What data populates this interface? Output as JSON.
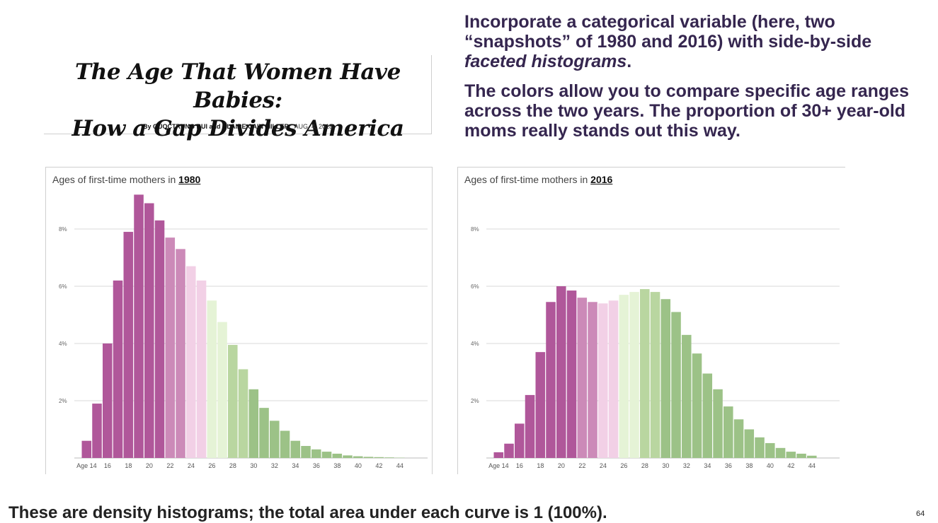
{
  "headline": {
    "title_line1": "The Age That Women Have Babies:",
    "title_line2": "How a Gap Divides America",
    "byline_prefix": "By",
    "authors": "QUOCTRUNG BUI and CLAIRE CAIN MILLER",
    "date": "AUG. 4, 2018"
  },
  "commentary": {
    "p1_a": "Incorporate a categorical variable (here, two “snapshots” of 1980 and 2016) with side-by-side ",
    "p1_em": "faceted histograms",
    "p1_b": ".",
    "p2": "The colors allow you to compare specific age ranges across the two years.  The proportion of 30+ year-old moms really stands out this way."
  },
  "footer": {
    "note": "These are density histograms; the total area under each curve is 1 (100%).",
    "page_number": "64"
  },
  "colors": {
    "purple_dark": "#b0579a",
    "purple_mid": "#cc8ab8",
    "pink_light": "#f2d0e6",
    "green_light": "#e5f3d6",
    "green_mid": "#b9d6a0",
    "green_dark": "#9cc287",
    "commentary_text": "#35264f"
  },
  "chart_data": [
    {
      "type": "bar",
      "title_prefix": "Ages of first-time mothers in",
      "title_year": "1980",
      "x_tick_labels": [
        "Age 14",
        "16",
        "18",
        "20",
        "22",
        "24",
        "26",
        "28",
        "30",
        "32",
        "34",
        "36",
        "38",
        "40",
        "42",
        "44"
      ],
      "y_tick_labels": [
        "8%",
        "6%",
        "4%",
        "2%"
      ],
      "ages": [
        14,
        15,
        16,
        17,
        18,
        19,
        20,
        21,
        22,
        23,
        24,
        25,
        26,
        27,
        28,
        29,
        30,
        31,
        32,
        33,
        34,
        35,
        36,
        37,
        38,
        39,
        40,
        41,
        42,
        43,
        44
      ],
      "values": [
        0.6,
        1.9,
        4.0,
        6.2,
        7.9,
        9.2,
        8.9,
        8.3,
        7.7,
        7.3,
        6.7,
        6.2,
        5.5,
        4.75,
        3.95,
        3.1,
        2.4,
        1.75,
        1.3,
        0.95,
        0.6,
        0.42,
        0.3,
        0.22,
        0.15,
        0.09,
        0.06,
        0.04,
        0.03,
        0.02,
        0.01
      ],
      "ylim": [
        0,
        9.2
      ],
      "grid": true
    },
    {
      "type": "bar",
      "title_prefix": "Ages of first-time mothers in",
      "title_year": "2016",
      "x_tick_labels": [
        "Age 14",
        "16",
        "18",
        "20",
        "22",
        "24",
        "26",
        "28",
        "30",
        "32",
        "34",
        "36",
        "38",
        "40",
        "42",
        "44"
      ],
      "y_tick_labels": [
        "8%",
        "6%",
        "4%",
        "2%"
      ],
      "ages": [
        14,
        15,
        16,
        17,
        18,
        19,
        20,
        21,
        22,
        23,
        24,
        25,
        26,
        27,
        28,
        29,
        30,
        31,
        32,
        33,
        34,
        35,
        36,
        37,
        38,
        39,
        40,
        41,
        42,
        43,
        44
      ],
      "values": [
        0.2,
        0.5,
        1.2,
        2.2,
        3.7,
        5.45,
        6.0,
        5.85,
        5.6,
        5.45,
        5.4,
        5.5,
        5.7,
        5.8,
        5.9,
        5.8,
        5.55,
        5.1,
        4.3,
        3.65,
        2.95,
        2.4,
        1.8,
        1.35,
        1.0,
        0.72,
        0.52,
        0.35,
        0.22,
        0.15,
        0.08
      ],
      "ylim": [
        0,
        9.2
      ],
      "grid": true
    }
  ]
}
